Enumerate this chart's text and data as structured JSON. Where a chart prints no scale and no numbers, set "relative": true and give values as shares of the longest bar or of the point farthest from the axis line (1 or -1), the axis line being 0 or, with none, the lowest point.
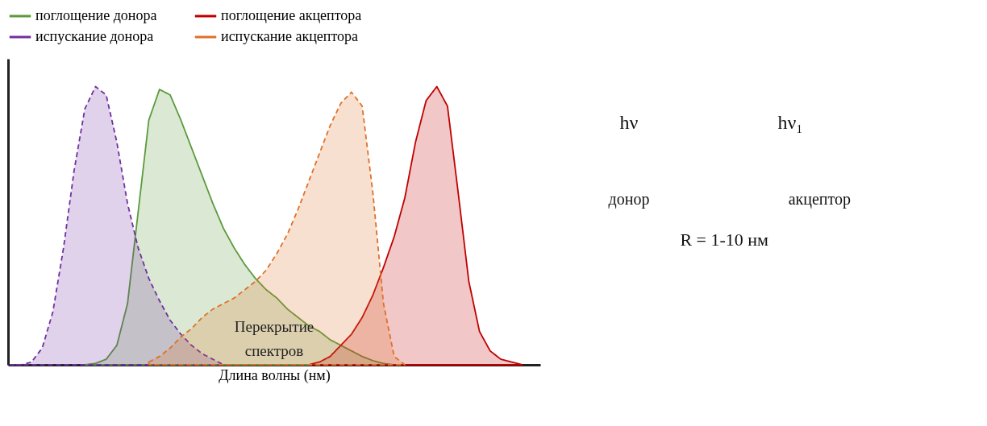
{
  "chart_data": {
    "type": "area",
    "relative": true,
    "xlabel": "Длина волны (нм)",
    "legend": "top",
    "categories": [
      null,
      null,
      null,
      null,
      null,
      null,
      null,
      null,
      null,
      null,
      null,
      null,
      null,
      null,
      null,
      null,
      null,
      null,
      null,
      null,
      null,
      null,
      null,
      null,
      null,
      null,
      null,
      null,
      null,
      null,
      null,
      null,
      null,
      null,
      null,
      null,
      null,
      null,
      null,
      null,
      null,
      null,
      null,
      null,
      null,
      null,
      null,
      null,
      null,
      null
    ],
    "series": [
      {
        "name": "поглощение донора",
        "color": "#5b9a3c",
        "line_style": "solid",
        "values": [
          null,
          null,
          null,
          null,
          null,
          null,
          null,
          0,
          0.005,
          0.02,
          0.07,
          0.22,
          0.55,
          0.88,
          0.99,
          0.97,
          0.88,
          0.78,
          0.68,
          0.58,
          0.49,
          0.42,
          0.36,
          0.31,
          0.27,
          0.24,
          0.2,
          0.17,
          0.14,
          0.12,
          0.09,
          0.07,
          0.05,
          0.03,
          0.015,
          0.005,
          0,
          null,
          null,
          null,
          null,
          null,
          null,
          null,
          null,
          null,
          null,
          null,
          null,
          null
        ]
      },
      {
        "name": "поглощение акцептора",
        "color": "#c00000",
        "line_style": "solid",
        "values": [
          null,
          null,
          null,
          null,
          null,
          null,
          null,
          null,
          null,
          null,
          null,
          null,
          null,
          null,
          null,
          null,
          null,
          null,
          null,
          null,
          null,
          null,
          null,
          null,
          null,
          null,
          null,
          null,
          0,
          0.01,
          0.03,
          0.07,
          0.11,
          0.17,
          0.25,
          0.35,
          0.46,
          0.6,
          0.8,
          0.95,
          1.0,
          0.93,
          0.62,
          0.3,
          0.12,
          0.05,
          0.02,
          0.01,
          0,
          null
        ]
      },
      {
        "name": "испускание донора",
        "color": "#7030a0",
        "line_style": "dashed",
        "values": [
          0,
          0,
          0.01,
          0.06,
          0.19,
          0.42,
          0.7,
          0.92,
          1.0,
          0.97,
          0.8,
          0.58,
          0.42,
          0.31,
          0.23,
          0.16,
          0.11,
          0.07,
          0.04,
          0.02,
          0,
          null,
          null,
          null,
          null,
          null,
          null,
          null,
          null,
          null,
          null,
          null,
          null,
          null,
          null,
          null,
          null,
          null,
          null,
          null,
          null,
          null,
          null,
          null,
          null,
          null,
          null,
          null,
          null,
          null
        ]
      },
      {
        "name": "испускание акцептора",
        "color": "#e07028",
        "line_style": "dashed",
        "values": [
          null,
          null,
          null,
          null,
          null,
          null,
          null,
          null,
          null,
          null,
          null,
          null,
          null,
          0.01,
          0.03,
          0.06,
          0.1,
          0.13,
          0.17,
          0.2,
          0.22,
          0.24,
          0.27,
          0.3,
          0.34,
          0.4,
          0.47,
          0.56,
          0.66,
          0.76,
          0.86,
          0.94,
          0.98,
          0.93,
          0.62,
          0.22,
          0.03,
          0,
          null,
          null,
          null,
          null,
          null,
          null,
          null,
          null,
          null,
          null,
          null,
          null
        ]
      }
    ],
    "annotations": [
      "Перекрытие спектров",
      "hν",
      "hν₁",
      "донор",
      "акцептор",
      "R = 1-10 нм"
    ]
  }
}
